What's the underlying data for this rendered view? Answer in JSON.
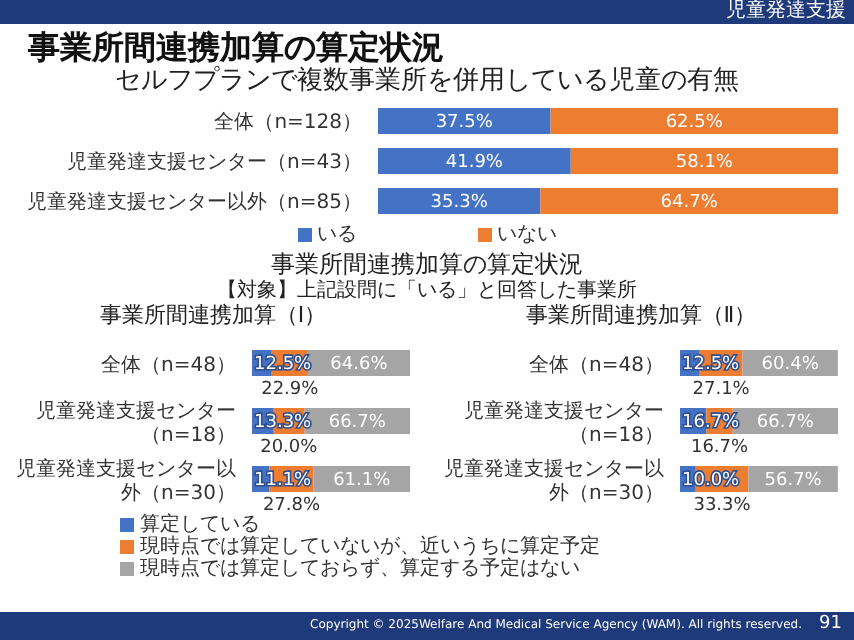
{
  "chart_data": [
    {
      "type": "bar",
      "orientation": "horizontal",
      "stacked": true,
      "title": "事業所間連携加算の算定状況",
      "subtitle": "セルフプランで複数事業所を併用している児童の有無",
      "categories": [
        "全体（n=128）",
        "児童発達支援センター（n=43）",
        "児童発達支援センター以外（n=85）"
      ],
      "series": [
        {
          "name": "いる",
          "color": "#4472c4",
          "values": [
            37.5,
            41.9,
            35.3
          ],
          "value_labels": [
            "37.5%",
            "41.9%",
            "35.3%"
          ]
        },
        {
          "name": "いない",
          "color": "#ed7d31",
          "values": [
            62.5,
            58.1,
            64.7
          ],
          "value_labels": [
            "62.5%",
            "58.1%",
            "64.7%"
          ]
        }
      ],
      "legend": "bottom",
      "annotations": [
        "児童発達支援",
        "Copyright © 2025Welfare And Medical Service Agency (WAM). All rights reserved.",
        "91"
      ]
    },
    {
      "type": "bar",
      "orientation": "horizontal",
      "stacked": true,
      "title": "事業所間連携加算（Ⅰ）",
      "categories": [
        "全体（n=48）",
        "児童発達支援センター（n=18）",
        "児童発達支援センター以外（n=30）"
      ],
      "series": [
        {
          "name": "算定している",
          "color": "#4472c4",
          "values": [
            12.5,
            13.3,
            11.1
          ],
          "value_labels": [
            "12.5%",
            "13.3%",
            "11.1%"
          ]
        },
        {
          "name": "現時点では算定していないが、近いうちに算定予定",
          "color": "#ed7d31",
          "values": [
            22.9,
            20.0,
            27.8
          ],
          "value_labels": [
            "22.9%",
            "20.0%",
            "27.8%"
          ]
        },
        {
          "name": "現時点では算定しておらず、算定する予定はない",
          "color": "#a5a5a5",
          "values": [
            64.6,
            66.7,
            61.1
          ],
          "value_labels": [
            "64.6%",
            "66.7%",
            "61.1%"
          ]
        }
      ],
      "legend": "bottom",
      "annotations": [
        "事業所間連携加算の算定状況",
        "【対象】上記設問に「いる」と回答した事業所"
      ]
    },
    {
      "type": "bar",
      "orientation": "horizontal",
      "stacked": true,
      "title": "事業所間連携加算（Ⅱ）",
      "categories": [
        "全体（n=48）",
        "児童発達支援センター（n=18）",
        "児童発達支援センター以外（n=30）"
      ],
      "series": [
        {
          "color": "#4472c4",
          "values": [
            12.5,
            16.7,
            10.0
          ],
          "value_labels": [
            "12.5%",
            "16.7%",
            "10.0%"
          ]
        },
        {
          "color": "#ed7d31",
          "values": [
            27.1,
            16.7,
            33.3
          ],
          "value_labels": [
            "27.1%",
            "16.7%",
            "33.3%"
          ]
        },
        {
          "color": "#a5a5a5",
          "values": [
            60.4,
            66.7,
            56.7
          ],
          "value_labels": [
            "60.4%",
            "66.7%",
            "56.7%"
          ]
        }
      ]
    }
  ]
}
